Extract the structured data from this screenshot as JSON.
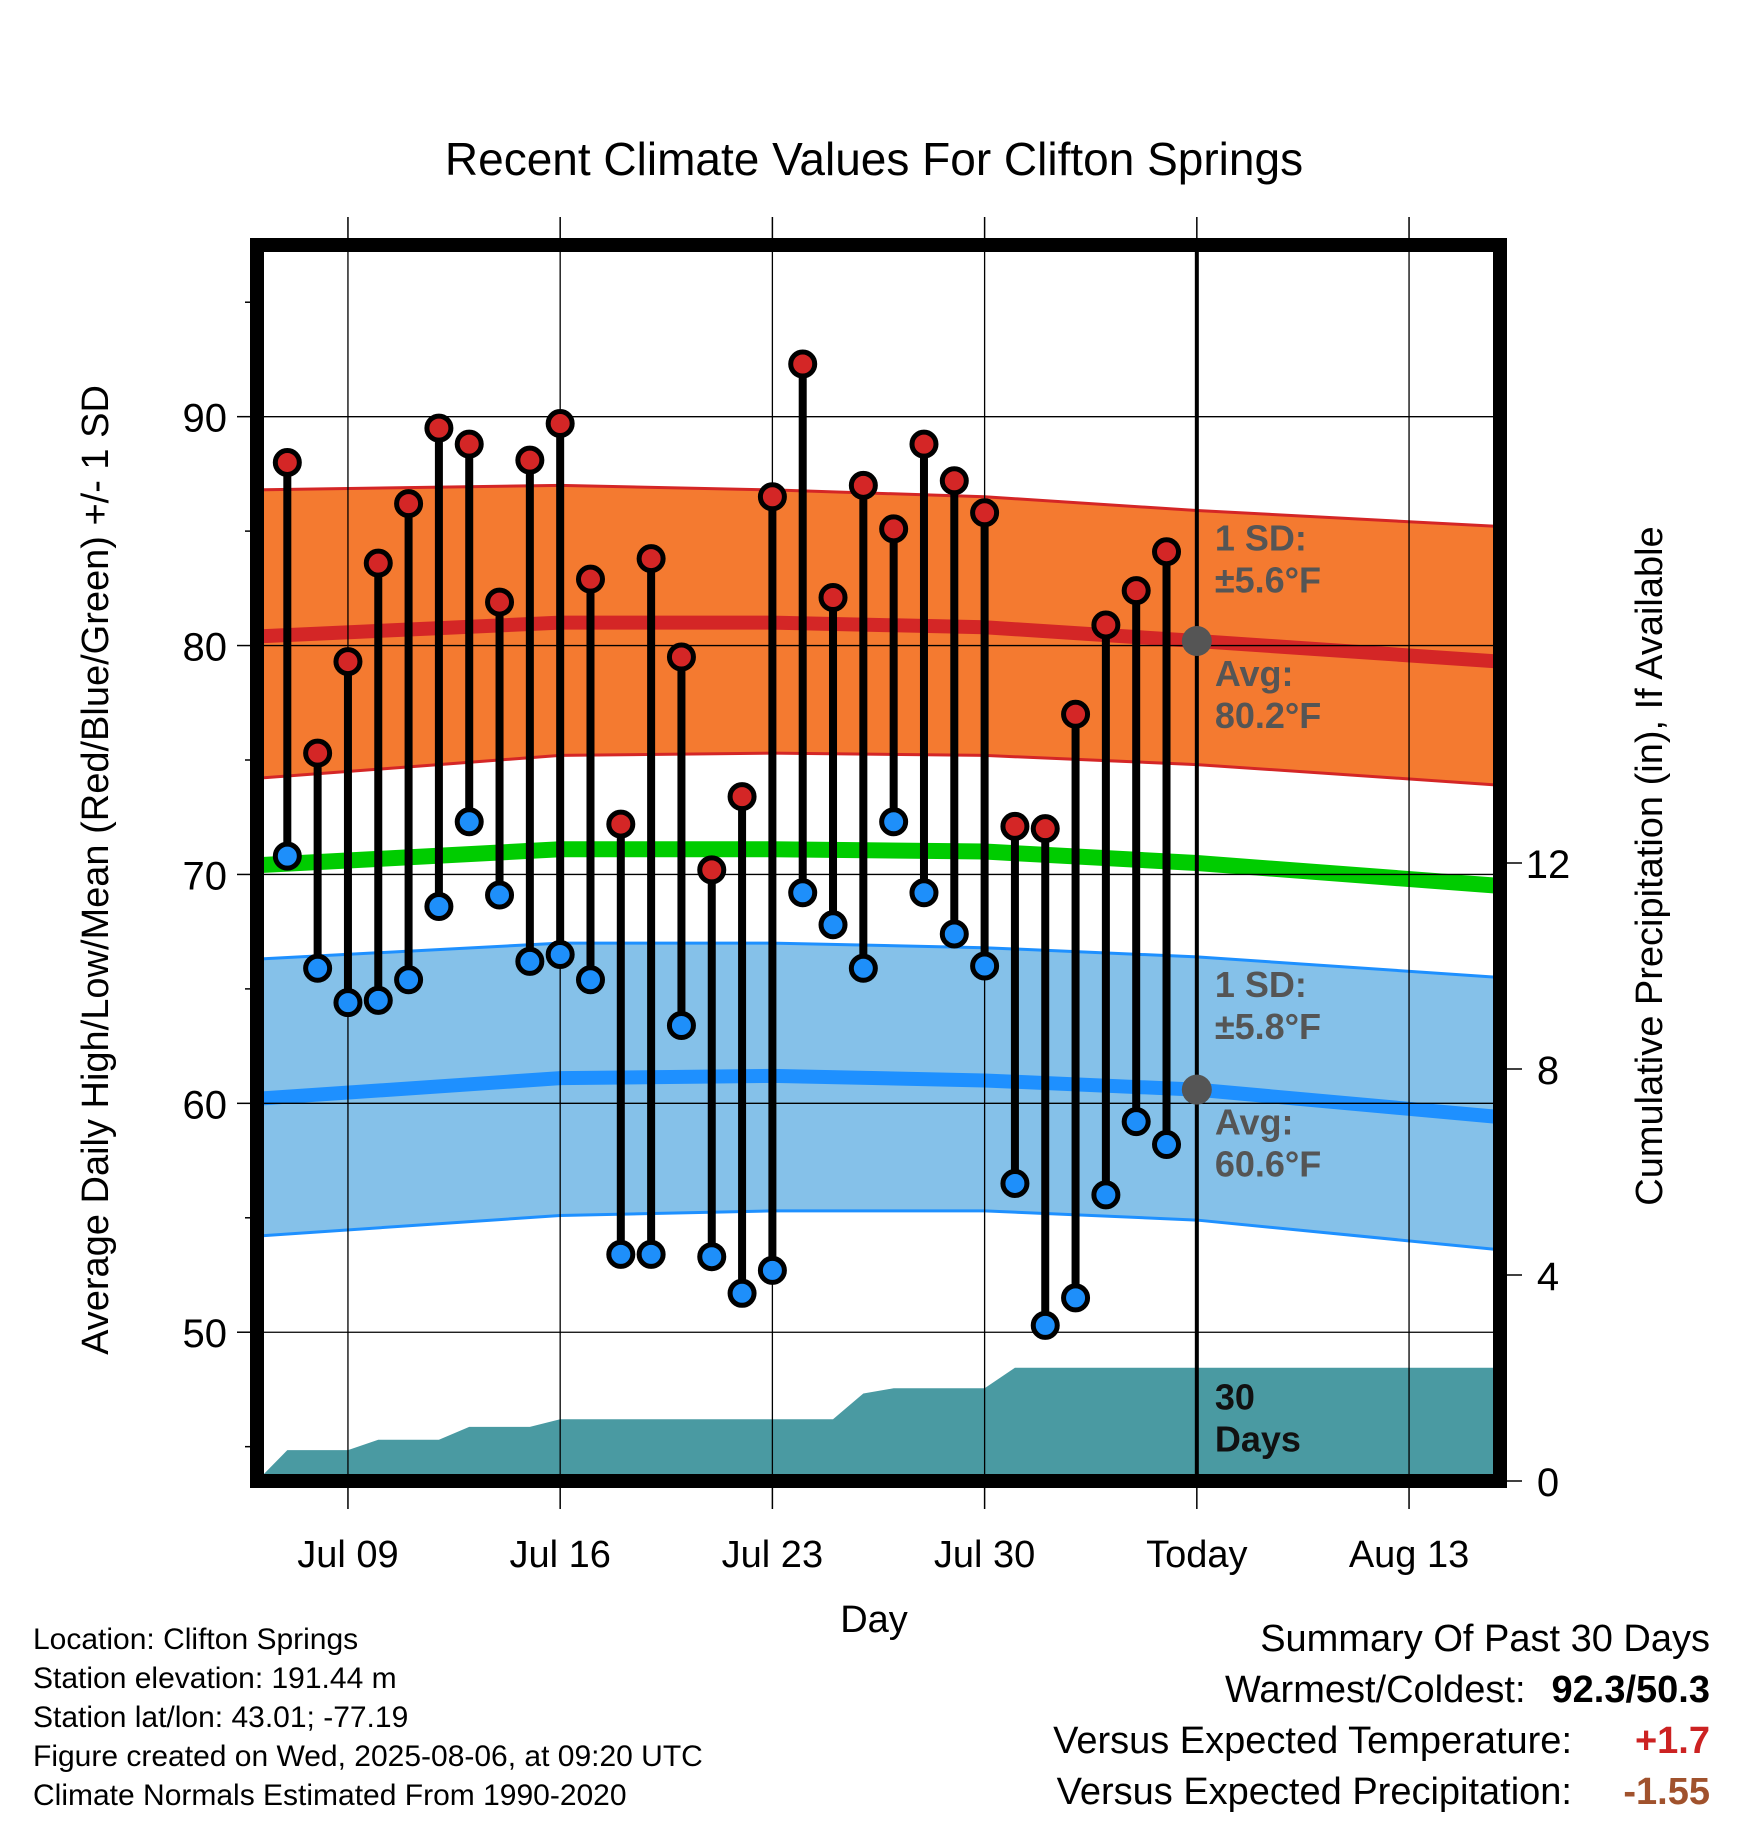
{
  "chart_data": {
    "type": "line",
    "title": "Recent Climate Values For Clifton Springs",
    "xlabel": "Day",
    "ylabel_left": "Average Daily High/Low/Mean (Red/Blue/Green) +/- 1 SD",
    "ylabel_right": "Cumulative Precipitation (in), If Available",
    "y_ticks_left": [
      "50",
      "60",
      "70",
      "80",
      "90"
    ],
    "y_ticks_right": [
      "0",
      "4",
      "8",
      "12"
    ],
    "x_ticks": [
      "Jul 09",
      "Jul 16",
      "Jul 23",
      "Jul 30",
      "Today",
      "Aug 13"
    ],
    "x_tick_dates": [
      "2025-07-09",
      "2025-07-16",
      "2025-07-23",
      "2025-07-30",
      "2025-08-06",
      "2025-08-13"
    ],
    "x_range": [
      "2025-07-06",
      "2025-08-16"
    ],
    "ylim_left": [
      43.5,
      97.5
    ],
    "ylim_right": [
      0,
      24
    ],
    "today": "2025-08-06",
    "days": [
      "2025-07-07",
      "2025-07-08",
      "2025-07-09",
      "2025-07-10",
      "2025-07-11",
      "2025-07-12",
      "2025-07-13",
      "2025-07-14",
      "2025-07-15",
      "2025-07-16",
      "2025-07-17",
      "2025-07-18",
      "2025-07-19",
      "2025-07-20",
      "2025-07-21",
      "2025-07-22",
      "2025-07-23",
      "2025-07-24",
      "2025-07-25",
      "2025-07-26",
      "2025-07-27",
      "2025-07-28",
      "2025-07-29",
      "2025-07-30",
      "2025-07-31",
      "2025-08-01",
      "2025-08-02",
      "2025-08-03",
      "2025-08-04",
      "2025-08-05"
    ],
    "daily_high": [
      88.0,
      75.3,
      79.3,
      83.6,
      86.2,
      89.5,
      88.8,
      81.9,
      88.1,
      89.7,
      82.9,
      72.2,
      83.8,
      79.5,
      70.2,
      73.4,
      86.5,
      92.3,
      82.1,
      87.0,
      85.1,
      88.8,
      87.2,
      85.8,
      72.1,
      72.0,
      77.0,
      80.9,
      82.4,
      84.1
    ],
    "daily_low": [
      70.8,
      65.9,
      64.4,
      64.5,
      65.4,
      68.6,
      72.3,
      69.1,
      66.2,
      66.5,
      65.4,
      53.4,
      53.4,
      63.4,
      53.3,
      51.7,
      52.7,
      69.2,
      67.8,
      65.9,
      72.3,
      69.2,
      67.4,
      66.0,
      56.5,
      50.3,
      51.5,
      56.0,
      59.2,
      58.2
    ],
    "normal_dates": [
      "2025-07-06",
      "2025-07-16",
      "2025-07-23",
      "2025-07-30",
      "2025-08-06",
      "2025-08-16"
    ],
    "normal_high": [
      80.4,
      81.0,
      81.0,
      80.8,
      80.2,
      79.3
    ],
    "normal_high_upper": [
      86.8,
      87.0,
      86.8,
      86.5,
      85.9,
      85.2
    ],
    "normal_high_lower": [
      74.2,
      75.2,
      75.3,
      75.2,
      74.8,
      73.9
    ],
    "normal_low": [
      60.2,
      61.1,
      61.2,
      61.0,
      60.6,
      59.4
    ],
    "normal_low_upper": [
      66.3,
      67.0,
      67.0,
      66.8,
      66.4,
      65.5
    ],
    "normal_low_lower": [
      54.2,
      55.1,
      55.3,
      55.3,
      54.9,
      53.6
    ],
    "normal_mean": [
      70.4,
      71.1,
      71.1,
      71.0,
      70.5,
      69.5
    ],
    "precip_dates": [
      "2025-07-06",
      "2025-07-07",
      "2025-07-09",
      "2025-07-10",
      "2025-07-12",
      "2025-07-13",
      "2025-07-15",
      "2025-07-16",
      "2025-07-25",
      "2025-07-26",
      "2025-07-27",
      "2025-07-30",
      "2025-07-31",
      "2025-08-16"
    ],
    "precip_cumulative": [
      0.0,
      0.6,
      0.6,
      0.8,
      0.8,
      1.05,
      1.05,
      1.2,
      1.2,
      1.7,
      1.8,
      1.8,
      2.2,
      2.2
    ],
    "annotations": {
      "high_sd": "1 SD:\n±5.6°F",
      "high_avg": "Avg:\n80.2°F",
      "low_sd": "1 SD:\n±5.8°F",
      "low_avg": "Avg:\n60.6°F",
      "days_label": "30\nDays"
    },
    "colors": {
      "high_band": "#f47a30",
      "high_band_edge": "#d42626",
      "high_avg_line": "#d42626",
      "low_band": "#85c1e9",
      "low_band_edge": "#1e90ff",
      "low_avg_line": "#1e90ff",
      "mean_line": "#00cc00",
      "precip_fill": "#4a9aa2",
      "high_dot": "#d42626",
      "low_dot": "#1e8ffa",
      "today_marker": "#555555",
      "annotation_text": "#555555"
    },
    "grid": true
  },
  "footer": {
    "location": "Location: Clifton Springs",
    "elevation": "Station elevation: 191.44 m",
    "latlon": "Station lat/lon: 43.01; -77.19",
    "created": "Figure created on Wed, 2025-08-06, at 09:20 UTC",
    "normals": "Climate Normals Estimated From 1990-2020"
  },
  "summary": {
    "heading": "Summary Of Past 30 Days",
    "warmest_label": "Warmest/Coldest:",
    "warmest_value": "92.3/50.3",
    "temp_label": "Versus Expected Temperature:",
    "temp_value": "+1.7",
    "precip_label": "Versus Expected Precipitation:",
    "precip_value": "-1.55"
  }
}
